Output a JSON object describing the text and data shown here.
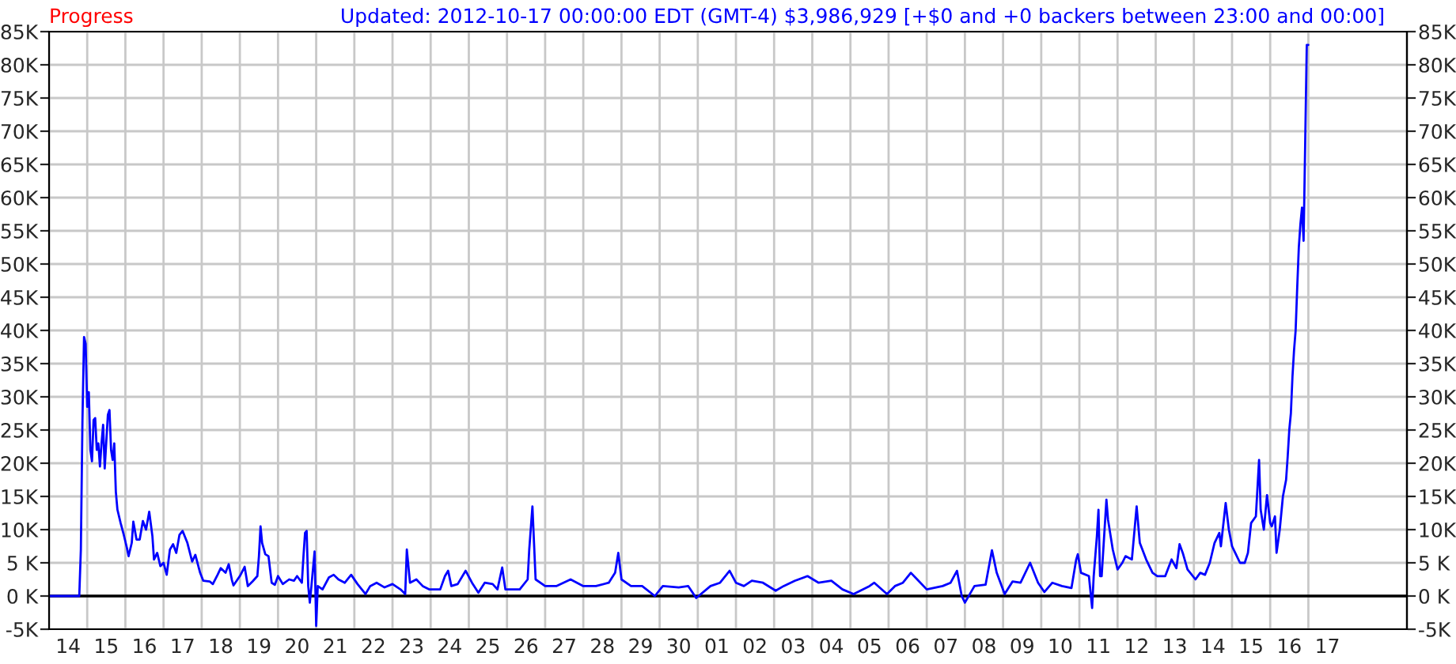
{
  "chart_data": {
    "type": "line",
    "title": "Progress",
    "subtitle": "Updated: 2012-10-17 00:00:00 EDT (GMT-4) $3,986,929 [+$0 and +0 backers between 23:00 and 00:00]",
    "series": [
      {
        "color": "#0000ff",
        "x": [
          "2012-09-14T00:00",
          "2012-09-14T19:00",
          "2012-09-14T20:00",
          "2012-09-14T21:00",
          "2012-09-14T22:00",
          "2012-09-14T23:00",
          "2012-09-15T00:00",
          "2012-09-15T01:00",
          "2012-09-15T02:00",
          "2012-09-15T03:00",
          "2012-09-15T04:00",
          "2012-09-15T05:00",
          "2012-09-15T06:00",
          "2012-09-15T07:00",
          "2012-09-15T08:00",
          "2012-09-15T09:00",
          "2012-09-15T10:00",
          "2012-09-15T11:00",
          "2012-09-15T13:00",
          "2012-09-15T14:00",
          "2012-09-15T15:00",
          "2012-09-15T16:00",
          "2012-09-15T17:00",
          "2012-09-15T18:00",
          "2012-09-15T19:00",
          "2012-09-15T21:00",
          "2012-09-15T23:00",
          "2012-09-16T01:00",
          "2012-09-16T02:00",
          "2012-09-16T04:00",
          "2012-09-16T05:00",
          "2012-09-16T07:00",
          "2012-09-16T09:00",
          "2012-09-16T11:00",
          "2012-09-16T13:00",
          "2012-09-16T15:00",
          "2012-09-16T17:00",
          "2012-09-16T18:00",
          "2012-09-16T20:00",
          "2012-09-16T22:00",
          "2012-09-17T00:00",
          "2012-09-17T02:00",
          "2012-09-17T04:00",
          "2012-09-17T06:00",
          "2012-09-17T08:00",
          "2012-09-17T10:00",
          "2012-09-17T12:00",
          "2012-09-17T15:00",
          "2012-09-17T18:00",
          "2012-09-17T20:00",
          "2012-09-17T23:00",
          "2012-09-18T01:00",
          "2012-09-18T05:00",
          "2012-09-18T07:00",
          "2012-09-18T10:00",
          "2012-09-18T12:00",
          "2012-09-18T15:00",
          "2012-09-18T17:00",
          "2012-09-18T19:00",
          "2012-09-18T20:00",
          "2012-09-19T00:00",
          "2012-09-19T03:00",
          "2012-09-19T05:00",
          "2012-09-19T08:00",
          "2012-09-19T11:00",
          "2012-09-19T12:00",
          "2012-09-19T13:00",
          "2012-09-19T14:00",
          "2012-09-19T16:00",
          "2012-09-19T18:00",
          "2012-09-19T20:00",
          "2012-09-19T22:00",
          "2012-09-20T00:00",
          "2012-09-20T03:00",
          "2012-09-20T07:00",
          "2012-09-20T10:00",
          "2012-09-20T12:00",
          "2012-09-20T15:00",
          "2012-09-20T16:00",
          "2012-09-20T17:00",
          "2012-09-20T18:00",
          "2012-09-20T19:00",
          "2012-09-20T20:00",
          "2012-09-20T21:00",
          "2012-09-20T23:00",
          "2012-09-21T00:00",
          "2012-09-21T01:00",
          "2012-09-21T04:00",
          "2012-09-21T08:00",
          "2012-09-21T11:00",
          "2012-09-21T14:00",
          "2012-09-21T18:00",
          "2012-09-21T22:00",
          "2012-09-22T02:00",
          "2012-09-22T07:00",
          "2012-09-22T10:00",
          "2012-09-22T14:00",
          "2012-09-22T19:00",
          "2012-09-23T00:00",
          "2012-09-23T05:00",
          "2012-09-23T08:00",
          "2012-09-23T09:00",
          "2012-09-23T11:00",
          "2012-09-23T15:00",
          "2012-09-23T19:00",
          "2012-09-23T23:00",
          "2012-09-24T06:00",
          "2012-09-24T09:00",
          "2012-09-24T11:00",
          "2012-09-24T13:00",
          "2012-09-24T17:00",
          "2012-09-24T22:00",
          "2012-09-25T02:00",
          "2012-09-25T06:00",
          "2012-09-25T10:00",
          "2012-09-25T15:00",
          "2012-09-25T18:00",
          "2012-09-25T21:00",
          "2012-09-25T23:00",
          "2012-09-26T01:00",
          "2012-09-26T08:00",
          "2012-09-26T13:00",
          "2012-09-26T14:00",
          "2012-09-26T16:00",
          "2012-09-26T17:00",
          "2012-09-26T18:00",
          "2012-09-27T00:00",
          "2012-09-27T07:00",
          "2012-09-27T16:00",
          "2012-09-28T00:00",
          "2012-09-28T08:00",
          "2012-09-28T16:00",
          "2012-09-28T20:00",
          "2012-09-28T22:00",
          "2012-09-29T00:00",
          "2012-09-29T06:00",
          "2012-09-29T13:00",
          "2012-09-29T21:00",
          "2012-09-30T02:00",
          "2012-09-30T12:00",
          "2012-09-30T18:00",
          "2012-09-30T23:00",
          "2012-10-01T08:00",
          "2012-10-01T14:00",
          "2012-10-01T20:00",
          "2012-10-02T00:00",
          "2012-10-02T05:00",
          "2012-10-02T10:00",
          "2012-10-02T17:00",
          "2012-10-03T01:00",
          "2012-10-03T06:00",
          "2012-10-03T13:00",
          "2012-10-03T21:00",
          "2012-10-04T04:00",
          "2012-10-04T12:00",
          "2012-10-04T19:00",
          "2012-10-05T02:00",
          "2012-10-05T12:00",
          "2012-10-05T15:00",
          "2012-10-05T23:00",
          "2012-10-06T04:00",
          "2012-10-06T09:00",
          "2012-10-06T14:00",
          "2012-10-06T18:00",
          "2012-10-07T00:00",
          "2012-10-07T10:00",
          "2012-10-07T15:00",
          "2012-10-07T19:00",
          "2012-10-07T22:00",
          "2012-10-08T00:00",
          "2012-10-08T06:00",
          "2012-10-08T13:00",
          "2012-10-08T17:00",
          "2012-10-08T20:00",
          "2012-10-09T01:00",
          "2012-10-09T06:00",
          "2012-10-09T11:00",
          "2012-10-09T17:00",
          "2012-10-09T22:00",
          "2012-10-10T02:00",
          "2012-10-10T07:00",
          "2012-10-10T13:00",
          "2012-10-10T19:00",
          "2012-10-10T22:00",
          "2012-10-10T23:00",
          "2012-10-11T01:00",
          "2012-10-11T06:00",
          "2012-10-11T08:00",
          "2012-10-11T09:00",
          "2012-10-11T11:00",
          "2012-10-11T12:00",
          "2012-10-11T13:00",
          "2012-10-11T14:00",
          "2012-10-11T17:00",
          "2012-10-11T18:00",
          "2012-10-11T21:00",
          "2012-10-12T00:00",
          "2012-10-12T03:00",
          "2012-10-12T05:00",
          "2012-10-12T09:00",
          "2012-10-12T12:00",
          "2012-10-12T14:00",
          "2012-10-12T18:00",
          "2012-10-12T22:00",
          "2012-10-13T01:00",
          "2012-10-13T06:00",
          "2012-10-13T10:00",
          "2012-10-13T13:00",
          "2012-10-13T15:00",
          "2012-10-13T17:00",
          "2012-10-13T20:00",
          "2012-10-14T01:00",
          "2012-10-14T04:00",
          "2012-10-14T07:00",
          "2012-10-14T10:00",
          "2012-10-14T13:00",
          "2012-10-14T16:00",
          "2012-10-14T17:00",
          "2012-10-14T20:00",
          "2012-10-14T22:00",
          "2012-10-15T00:00",
          "2012-10-15T02:00",
          "2012-10-15T05:00",
          "2012-10-15T08:00",
          "2012-10-15T10:00",
          "2012-10-15T12:00",
          "2012-10-15T15:00",
          "2012-10-15T17:00",
          "2012-10-15T18:00",
          "2012-10-15T20:00",
          "2012-10-15T22:00",
          "2012-10-16T00:00",
          "2012-10-16T01:00",
          "2012-10-16T03:00",
          "2012-10-16T04:00",
          "2012-10-16T06:00",
          "2012-10-16T08:00",
          "2012-10-16T10:00",
          "2012-10-16T11:00",
          "2012-10-16T12:00",
          "2012-10-16T13:00",
          "2012-10-16T14:00",
          "2012-10-16T15:00",
          "2012-10-16T16:00",
          "2012-10-16T17:00",
          "2012-10-16T18:00",
          "2012-10-16T19:00",
          "2012-10-16T20:00",
          "2012-10-16T21:00",
          "2012-10-16T22:00",
          "2012-10-16T23:00",
          "2012-10-17T00:00"
        ],
        "values": [
          0,
          0,
          7,
          26.5,
          39,
          38,
          28.5,
          30.7,
          22,
          20.3,
          26.5,
          26.8,
          22,
          23,
          19.5,
          23,
          25.8,
          19.2,
          27.3,
          28,
          22,
          20.5,
          23,
          15.7,
          13,
          11,
          9.2,
          7.2,
          6,
          8,
          11.2,
          8.5,
          8.5,
          11.3,
          10,
          12.7,
          9,
          5.5,
          6.5,
          4.5,
          5,
          3.2,
          7,
          7.8,
          6.5,
          9.2,
          9.8,
          8,
          5.2,
          6.2,
          3.5,
          2.3,
          2.2,
          1.8,
          3.2,
          4.2,
          3.5,
          4.8,
          2.4,
          1.6,
          3,
          4.4,
          1.5,
          2.2,
          3,
          6,
          10.5,
          8,
          6.3,
          6,
          2,
          1.7,
          3,
          1.8,
          2.5,
          2.3,
          3,
          2,
          6,
          9.5,
          9.8,
          1.5,
          -1,
          1.5,
          6.7,
          -4.5,
          1.5,
          1,
          2.8,
          3.2,
          2.5,
          2,
          3.2,
          1.8,
          0.3,
          1.5,
          2,
          1.3,
          1.8,
          1,
          0.3,
          7,
          2,
          2.5,
          1.5,
          1,
          1,
          3,
          3.8,
          1.5,
          1.8,
          3.8,
          2,
          0.5,
          2,
          1.8,
          1,
          4.3,
          1,
          1,
          1,
          2.5,
          7,
          13.5,
          8,
          2.5,
          1.5,
          1.5,
          2.5,
          1.5,
          1.5,
          2,
          3.5,
          6.5,
          2.5,
          1.5,
          1.5,
          0,
          1.5,
          1.3,
          1.5,
          -0.3,
          1.5,
          2,
          3.8,
          2,
          1.5,
          2.3,
          2,
          0.8,
          1.5,
          2.3,
          3,
          2,
          2.3,
          1,
          0.3,
          1.5,
          2,
          0.3,
          1.5,
          2,
          3.5,
          2.5,
          1,
          1.5,
          2,
          3.8,
          0,
          -1,
          1.5,
          1.7,
          6.9,
          3.5,
          0.3,
          2.2,
          2,
          5,
          2,
          0.6,
          2,
          1.5,
          1.2,
          5.5,
          6.3,
          3.5,
          3,
          -1.8,
          3,
          9,
          13,
          3,
          3,
          14.5,
          11.5,
          7,
          4,
          5,
          6,
          5.5,
          13.5,
          8,
          5.5,
          3.5,
          3,
          3,
          5.5,
          4.2,
          7.8,
          6.5,
          4,
          2.5,
          3.5,
          3.2,
          5,
          8,
          9.5,
          7.5,
          14,
          10,
          7.5,
          6.5,
          5,
          5,
          6.5,
          11,
          12,
          20.5,
          13,
          10,
          15.2,
          11,
          10.5,
          12,
          6.5,
          10,
          15,
          17.5,
          21,
          25,
          27.5,
          33,
          37,
          40,
          46.5,
          52.5,
          56,
          58.5,
          53.5,
          68,
          83,
          83
        ]
      }
    ],
    "xlim": [
      "2012-09-14T00:00",
      "2012-10-19T14:00"
    ],
    "xticks": [
      {
        "value": "2012-09-14",
        "label": null
      },
      {
        "value": "2012-09-15",
        "label": null
      },
      {
        "value": "2012-09-16",
        "label": null
      },
      {
        "value": "2012-09-17",
        "label": null
      },
      {
        "value": "2012-09-18",
        "label": null
      },
      {
        "value": "2012-09-19",
        "label": null
      },
      {
        "value": "2012-09-20",
        "label": null
      },
      {
        "value": "2012-09-21",
        "label": null
      },
      {
        "value": "2012-09-22",
        "label": null
      },
      {
        "value": "2012-09-23",
        "label": null
      },
      {
        "value": "2012-09-24",
        "label": null
      },
      {
        "value": "2012-09-25",
        "label": null
      },
      {
        "value": "2012-09-26",
        "label": null
      },
      {
        "value": "2012-09-27",
        "label": null
      },
      {
        "value": "2012-09-28",
        "label": null
      },
      {
        "value": "2012-09-29",
        "label": null
      },
      {
        "value": "2012-09-30",
        "label": null
      },
      {
        "value": "2012-10-01",
        "label": null
      },
      {
        "value": "2012-10-02",
        "label": null
      },
      {
        "value": "2012-10-03",
        "label": null
      },
      {
        "value": "2012-10-04",
        "label": null
      },
      {
        "value": "2012-10-05",
        "label": null
      },
      {
        "value": "2012-10-06",
        "label": null
      },
      {
        "value": "2012-10-07",
        "label": null
      },
      {
        "value": "2012-10-08",
        "label": null
      },
      {
        "value": "2012-10-09",
        "label": null
      },
      {
        "value": "2012-10-10",
        "label": null
      },
      {
        "value": "2012-10-11",
        "label": null
      },
      {
        "value": "2012-10-12",
        "label": null
      },
      {
        "value": "2012-10-13",
        "label": null
      },
      {
        "value": "2012-10-14",
        "label": null
      },
      {
        "value": "2012-10-15",
        "label": null
      },
      {
        "value": "2012-10-16",
        "label": null
      },
      {
        "value": "2012-10-17",
        "label": null
      },
      {
        "value": "2012-09-14T12:00",
        "label": "14"
      },
      {
        "value": "2012-09-15T12:00",
        "label": "15"
      },
      {
        "value": "2012-09-16T12:00",
        "label": "16"
      },
      {
        "value": "2012-09-17T12:00",
        "label": "17"
      },
      {
        "value": "2012-09-18T12:00",
        "label": "18"
      },
      {
        "value": "2012-09-19T12:00",
        "label": "19"
      },
      {
        "value": "2012-09-20T12:00",
        "label": "20"
      },
      {
        "value": "2012-09-21T12:00",
        "label": "21"
      },
      {
        "value": "2012-09-22T12:00",
        "label": "22"
      },
      {
        "value": "2012-09-23T12:00",
        "label": "23"
      },
      {
        "value": "2012-09-24T12:00",
        "label": "24"
      },
      {
        "value": "2012-09-25T12:00",
        "label": "25"
      },
      {
        "value": "2012-09-26T12:00",
        "label": "26"
      },
      {
        "value": "2012-09-27T12:00",
        "label": "27"
      },
      {
        "value": "2012-09-28T12:00",
        "label": "28"
      },
      {
        "value": "2012-09-29T12:00",
        "label": "29"
      },
      {
        "value": "2012-09-30T12:00",
        "label": "30"
      },
      {
        "value": "2012-10-01T12:00",
        "label": "01"
      },
      {
        "value": "2012-10-02T12:00",
        "label": "02"
      },
      {
        "value": "2012-10-03T12:00",
        "label": "03"
      },
      {
        "value": "2012-10-04T12:00",
        "label": "04"
      },
      {
        "value": "2012-10-05T12:00",
        "label": "05"
      },
      {
        "value": "2012-10-06T12:00",
        "label": "06"
      },
      {
        "value": "2012-10-07T12:00",
        "label": "07"
      },
      {
        "value": "2012-10-08T12:00",
        "label": "08"
      },
      {
        "value": "2012-10-09T12:00",
        "label": "09"
      },
      {
        "value": "2012-10-10T12:00",
        "label": "10"
      },
      {
        "value": "2012-10-11T12:00",
        "label": "11"
      },
      {
        "value": "2012-10-12T12:00",
        "label": "12"
      },
      {
        "value": "2012-10-13T12:00",
        "label": "13"
      },
      {
        "value": "2012-10-14T12:00",
        "label": "14"
      },
      {
        "value": "2012-10-15T12:00",
        "label": "15"
      },
      {
        "value": "2012-10-16T12:00",
        "label": "16"
      },
      {
        "value": "2012-10-17T12:00",
        "label": "17"
      }
    ],
    "ylim": [
      -5,
      85
    ],
    "yticks": [
      {
        "value": -5,
        "label": "-5K"
      },
      {
        "value": 0,
        "label": "0 K"
      },
      {
        "value": 5,
        "label": "5 K"
      },
      {
        "value": 10,
        "label": "10K"
      },
      {
        "value": 15,
        "label": "15K"
      },
      {
        "value": 20,
        "label": "20K"
      },
      {
        "value": 25,
        "label": "25K"
      },
      {
        "value": 30,
        "label": "30K"
      },
      {
        "value": 35,
        "label": "35K"
      },
      {
        "value": 40,
        "label": "40K"
      },
      {
        "value": 45,
        "label": "45K"
      },
      {
        "value": 50,
        "label": "50K"
      },
      {
        "value": 55,
        "label": "55K"
      },
      {
        "value": 60,
        "label": "60K"
      },
      {
        "value": 65,
        "label": "65K"
      },
      {
        "value": 70,
        "label": "70K"
      },
      {
        "value": 75,
        "label": "75K"
      },
      {
        "value": 80,
        "label": "80K"
      },
      {
        "value": 85,
        "label": "85K"
      }
    ],
    "y2lim": [
      -5,
      85
    ],
    "y2ticks": [
      {
        "value": -5,
        "label": "-5K"
      },
      {
        "value": 0,
        "label": "0 K"
      },
      {
        "value": 5,
        "label": "5 K"
      },
      {
        "value": 10,
        "label": "10K"
      },
      {
        "value": 15,
        "label": "15K"
      },
      {
        "value": 20,
        "label": "20K"
      },
      {
        "value": 25,
        "label": "25K"
      },
      {
        "value": 30,
        "label": "30K"
      },
      {
        "value": 35,
        "label": "35K"
      },
      {
        "value": 40,
        "label": "40K"
      },
      {
        "value": 45,
        "label": "45K"
      },
      {
        "value": 50,
        "label": "50K"
      },
      {
        "value": 55,
        "label": "55K"
      },
      {
        "value": 60,
        "label": "60K"
      },
      {
        "value": 65,
        "label": "65K"
      },
      {
        "value": 70,
        "label": "70K"
      },
      {
        "value": 75,
        "label": "75K"
      },
      {
        "value": 80,
        "label": "80K"
      },
      {
        "value": 85,
        "label": "85K"
      }
    ],
    "ref_lines": [
      {
        "axis": "y",
        "value": 0,
        "color": "#000000"
      }
    ],
    "grid": true,
    "legend": false
  }
}
